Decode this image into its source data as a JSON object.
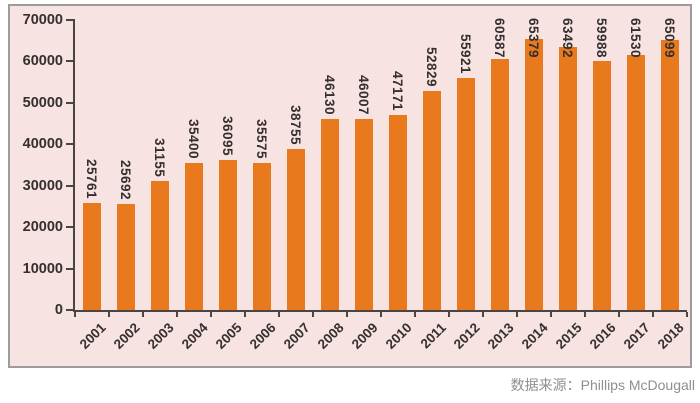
{
  "chart_data": {
    "type": "bar",
    "title": "",
    "xlabel": "",
    "ylabel": "",
    "categories": [
      "2001",
      "2002",
      "2003",
      "2004",
      "2005",
      "2006",
      "2007",
      "2008",
      "2009",
      "2010",
      "2011",
      "2012",
      "2013",
      "2014",
      "2015",
      "2016",
      "2017",
      "2018"
    ],
    "values": [
      25761,
      25692,
      31155,
      35400,
      36095,
      35575,
      38755,
      46130,
      46007,
      47171,
      52829,
      55921,
      60587,
      65379,
      63492,
      59988,
      61530,
      65099
    ],
    "y_ticks": [
      0,
      10000,
      20000,
      30000,
      40000,
      50000,
      60000,
      70000
    ],
    "ylim": [
      0,
      70000
    ],
    "grid": false,
    "legend": "none",
    "data_labels": "value above each bar, rotated 90 degrees clockwise",
    "x_tick_label_rotation_deg": -45,
    "colors": {
      "bar": "#E8791C",
      "plot_background": "#F6E3E2",
      "frame_border": "#9C9C9C",
      "axis": "#4A4443",
      "tick_label_text": "#362F2F",
      "source_text": "#8F8F8F"
    }
  },
  "footer": {
    "source_caption": "数据来源：",
    "source_name": "Phillips McDougall"
  }
}
